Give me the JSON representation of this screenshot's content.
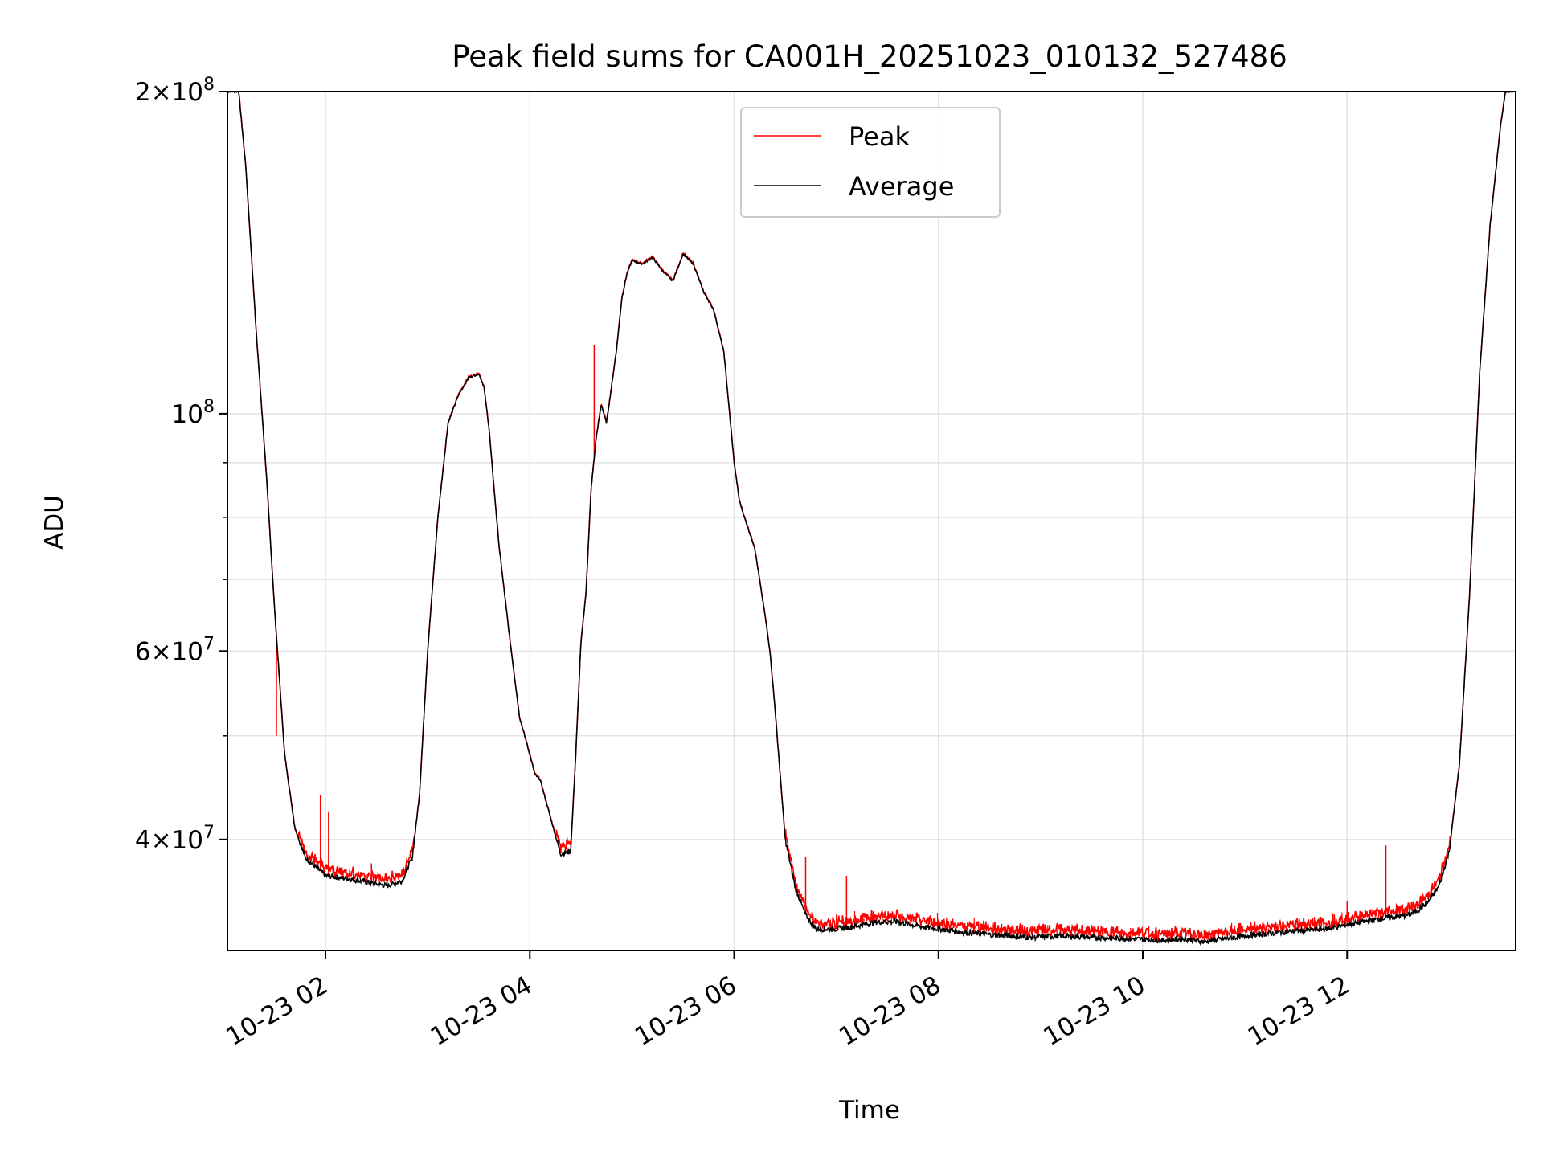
{
  "chart_data": {
    "type": "line",
    "title": "Peak field sums for CA001H_20251023_010132_527486",
    "xlabel": "Time",
    "ylabel": "ADU",
    "yscale": "log",
    "xlim_hours": [
      1.04,
      13.65
    ],
    "ylim": [
      31500000,
      200000000
    ],
    "grid": true,
    "legend_position": "upper-center",
    "x_ticks": [
      {
        "hour": 2,
        "label": "10-23 02"
      },
      {
        "hour": 4,
        "label": "10-23 04"
      },
      {
        "hour": 6,
        "label": "10-23 06"
      },
      {
        "hour": 8,
        "label": "10-23 08"
      },
      {
        "hour": 10,
        "label": "10-23 10"
      },
      {
        "hour": 12,
        "label": "10-23 12"
      }
    ],
    "y_ticks": [
      {
        "value": 40000000,
        "base": "4×10",
        "exp": "7"
      },
      {
        "value": 60000000,
        "base": "6×10",
        "exp": "7"
      },
      {
        "value": 100000000,
        "base": "10",
        "exp": "8"
      },
      {
        "value": 200000000,
        "base": "2×10",
        "exp": "8"
      }
    ],
    "y_minor_ticks": [
      50000000,
      70000000,
      80000000,
      90000000
    ],
    "x_units": "hours since 2025-10-23 00:00",
    "series": [
      {
        "name": "Average",
        "color": "#000000",
        "x": [
          1.04,
          1.15,
          1.22,
          1.32,
          1.42,
          1.5,
          1.6,
          1.7,
          1.8,
          2.0,
          2.2,
          2.4,
          2.6,
          2.75,
          2.85,
          2.92,
          3.0,
          3.1,
          3.2,
          3.3,
          3.4,
          3.5,
          3.55,
          3.6,
          3.65,
          3.7,
          3.8,
          3.9,
          4.0,
          4.05,
          4.1,
          4.2,
          4.3,
          4.4,
          4.45,
          4.5,
          4.55,
          4.6,
          4.65,
          4.7,
          4.75,
          4.8,
          4.85,
          4.9,
          4.95,
          5.0,
          5.1,
          5.2,
          5.3,
          5.4,
          5.5,
          5.6,
          5.7,
          5.8,
          5.9,
          6.0,
          6.05,
          6.1,
          6.2,
          6.3,
          6.35,
          6.4,
          6.45,
          6.5,
          6.6,
          6.7,
          6.8,
          7.0,
          7.2,
          7.4,
          7.6,
          7.8,
          8.0,
          8.2,
          8.5,
          8.9,
          9.2,
          9.5,
          9.9,
          10.2,
          10.4,
          10.6,
          10.8,
          11.0,
          11.4,
          11.8,
          12.0,
          12.3,
          12.6,
          12.7,
          12.8,
          12.9,
          13.0,
          13.1,
          13.2,
          13.3,
          13.4,
          13.5,
          13.55,
          13.65
        ],
        "values": [
          200000000,
          200000000,
          170000000,
          120000000,
          88000000,
          66000000,
          48000000,
          41000000,
          38500000,
          37000000,
          36800000,
          36500000,
          36200000,
          36600000,
          38500000,
          44000000,
          60000000,
          80000000,
          98000000,
          104000000,
          108000000,
          109000000,
          106000000,
          97000000,
          85000000,
          75000000,
          62000000,
          52000000,
          48000000,
          46000000,
          45500000,
          42000000,
          38800000,
          39000000,
          48000000,
          61000000,
          68000000,
          85000000,
          95000000,
          102000000,
          98000000,
          106000000,
          115000000,
          128000000,
          135000000,
          139000000,
          138000000,
          140000000,
          136000000,
          133000000,
          141000000,
          138000000,
          130000000,
          125000000,
          114000000,
          90000000,
          83000000,
          80000000,
          75000000,
          65000000,
          60000000,
          53000000,
          46000000,
          40000000,
          36000000,
          34000000,
          33000000,
          33000000,
          33200000,
          33500000,
          33500000,
          33200000,
          33000000,
          32800000,
          32600000,
          32400000,
          32500000,
          32400000,
          32300000,
          32200000,
          32300000,
          32100000,
          32300000,
          32500000,
          32800000,
          33000000,
          33300000,
          33700000,
          34000000,
          34400000,
          35000000,
          36200000,
          39000000,
          47000000,
          68000000,
          110000000,
          150000000,
          185000000,
          200000000,
          200000000
        ]
      },
      {
        "name": "Peak",
        "color": "#ff0000",
        "spikes": [
          {
            "hour": 1.52,
            "value": 50000000
          },
          {
            "hour": 1.95,
            "value": 44000000
          },
          {
            "hour": 2.03,
            "value": 42500000
          },
          {
            "hour": 2.45,
            "value": 38000000
          },
          {
            "hour": 4.63,
            "value": 116000000
          },
          {
            "hour": 6.7,
            "value": 38500000
          },
          {
            "hour": 7.1,
            "value": 37000000
          },
          {
            "hour": 12.38,
            "value": 39500000
          },
          {
            "hour": 12.0,
            "value": 35000000
          }
        ]
      }
    ]
  }
}
